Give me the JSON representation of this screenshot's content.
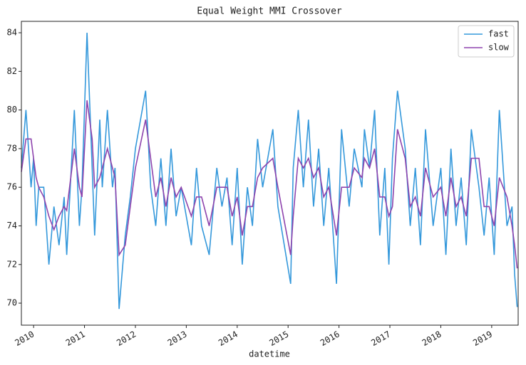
{
  "chart_data": {
    "type": "line",
    "title": "Equal Weight MMI Crossover",
    "xlabel": "datetime",
    "x": [
      2009.76,
      2009.85,
      2009.95,
      2010.0,
      2010.05,
      2010.1,
      2010.2,
      2010.3,
      2010.4,
      2010.5,
      2010.6,
      2010.65,
      2010.8,
      2010.9,
      2010.95,
      2011.05,
      2011.15,
      2011.2,
      2011.3,
      2011.35,
      2011.45,
      2011.55,
      2011.6,
      2011.68,
      2011.8,
      2011.9,
      2012.0,
      2012.2,
      2012.3,
      2012.4,
      2012.5,
      2012.6,
      2012.7,
      2012.8,
      2012.9,
      2013.1,
      2013.2,
      2013.3,
      2013.45,
      2013.6,
      2013.7,
      2013.8,
      2013.9,
      2014.0,
      2014.1,
      2014.2,
      2014.3,
      2014.4,
      2014.5,
      2014.7,
      2014.8,
      2015.05,
      2015.1,
      2015.2,
      2015.3,
      2015.4,
      2015.5,
      2015.6,
      2015.7,
      2015.8,
      2015.95,
      2016.05,
      2016.2,
      2016.3,
      2016.45,
      2016.5,
      2016.6,
      2016.7,
      2016.8,
      2016.9,
      2016.98,
      2017.05,
      2017.15,
      2017.3,
      2017.4,
      2017.5,
      2017.6,
      2017.7,
      2017.85,
      2018.0,
      2018.1,
      2018.2,
      2018.3,
      2018.4,
      2018.5,
      2018.6,
      2018.75,
      2018.85,
      2018.95,
      2019.05,
      2019.15,
      2019.3,
      2019.4,
      2019.45,
      2019.5
    ],
    "series": [
      {
        "name": "fast",
        "color": "#3498db",
        "values": [
          77,
          80,
          76,
          77.5,
          74,
          76,
          76,
          72,
          75,
          73,
          75.5,
          72.5,
          80,
          74,
          76,
          84,
          77,
          73.5,
          79.5,
          76,
          80,
          76,
          77,
          69.7,
          73.5,
          75.5,
          78,
          81,
          76,
          74,
          77.5,
          74,
          78,
          74.5,
          76,
          73,
          77,
          74,
          72.5,
          77,
          75,
          76.5,
          73,
          77,
          72,
          76,
          74,
          78.5,
          76,
          79,
          75,
          71,
          77,
          80,
          76,
          79.5,
          75,
          78,
          74,
          77,
          71,
          79,
          75,
          78,
          76,
          79,
          77,
          80,
          73.5,
          77,
          72,
          77.5,
          81,
          78,
          74,
          77,
          73,
          79,
          74,
          77,
          72.5,
          78,
          74,
          76.5,
          73,
          79,
          76,
          73.5,
          76.5,
          72.5,
          80,
          74,
          75,
          71.5,
          69.8
        ]
      },
      {
        "name": "slow",
        "color": "#8e44ad",
        "values": [
          76.8,
          78.5,
          78.5,
          77.5,
          76.5,
          76,
          75.5,
          74.5,
          73.8,
          74.5,
          75,
          74.8,
          78,
          76,
          75.5,
          80.5,
          78.5,
          76,
          76.5,
          77,
          78,
          77,
          76.5,
          72.5,
          73,
          75,
          77,
          79.5,
          77.5,
          75.5,
          76.5,
          75,
          76.5,
          75.5,
          76,
          74.5,
          75.5,
          75.5,
          74,
          76,
          76,
          76,
          74.5,
          75.5,
          73.5,
          75,
          75,
          76.5,
          77,
          77.5,
          76,
          72.5,
          74.5,
          77.5,
          77,
          77.5,
          76.5,
          77,
          75.5,
          76,
          73.5,
          76,
          76,
          77,
          76.5,
          77.5,
          77,
          78,
          75.5,
          75.5,
          74.5,
          75,
          79,
          77.5,
          75,
          75.5,
          74.5,
          77,
          75.5,
          76,
          74.5,
          76.5,
          75,
          75.5,
          74.5,
          77.5,
          77.5,
          75,
          75,
          74,
          76.5,
          75.5,
          74,
          73,
          71.8
        ]
      }
    ],
    "xlim": [
      2009.76,
      2019.52
    ],
    "xticks": [
      2010,
      2011,
      2012,
      2013,
      2014,
      2015,
      2016,
      2017,
      2018,
      2019
    ],
    "ylim": [
      68.86,
      84.59
    ],
    "yticks": [
      70,
      72,
      74,
      76,
      78,
      80,
      82,
      84
    ],
    "grid": false,
    "legend": "upper right"
  }
}
